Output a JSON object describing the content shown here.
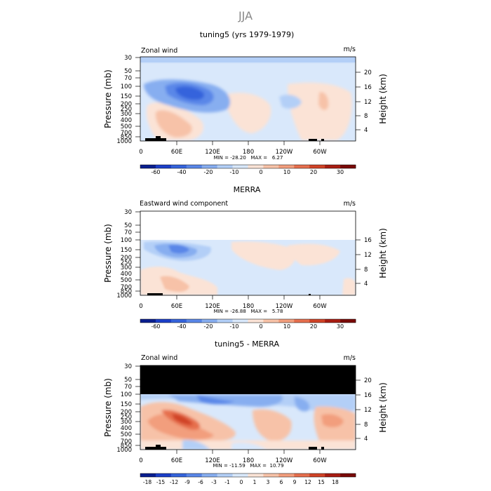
{
  "season": "JJA",
  "chart_data": [
    {
      "type": "heatmap",
      "title": "tuning5 (yrs 1979-1979)",
      "subtitle_left": "Zonal wind",
      "subtitle_right": "m/s",
      "ylabel": "Pressure (mb)",
      "ylabel_right": "Height (km)",
      "yticks": [
        "30",
        "50",
        "70",
        "100",
        "150",
        "200",
        "250",
        "300",
        "400",
        "500",
        "700",
        "850",
        "1000"
      ],
      "yticks_right": [
        "20",
        "16",
        "12",
        "8",
        "4"
      ],
      "xticks": [
        "0",
        "60E",
        "120E",
        "180",
        "120W",
        "60W"
      ],
      "stats": "MIN = -28.20   MAX =   6.27",
      "colorbar_labels": [
        "-60",
        "-40",
        "-20",
        "-10",
        "0",
        "10",
        "20",
        "30"
      ],
      "colors": [
        "#0a1f8f",
        "#1c3fc8",
        "#3564dc",
        "#5a87e8",
        "#87aef0",
        "#b3cff7",
        "#d9e8fb",
        "#fbe3d6",
        "#f7c2a8",
        "#f29e7d",
        "#e66f4e",
        "#d04327",
        "#a81d12",
        "#7a0a08"
      ]
    },
    {
      "type": "heatmap",
      "title": "MERRA",
      "subtitle_left": "Eastward wind component",
      "subtitle_right": "m/s",
      "ylabel": "Pressure (mb)",
      "ylabel_right": "Height (km)",
      "yticks": [
        "30",
        "50",
        "70",
        "100",
        "150",
        "200",
        "250",
        "300",
        "400",
        "500",
        "700",
        "850",
        "1000"
      ],
      "yticks_right": [
        "16",
        "12",
        "8",
        "4"
      ],
      "xticks": [
        "0",
        "60E",
        "120E",
        "180",
        "120W",
        "60W"
      ],
      "stats": "MIN = -26.88   MAX =   5.78",
      "colorbar_labels": [
        "-60",
        "-40",
        "-20",
        "-10",
        "0",
        "10",
        "20",
        "30"
      ]
    },
    {
      "type": "heatmap",
      "title": "tuning5 - MERRA",
      "subtitle_left": "Zonal wind",
      "subtitle_right": "m/s",
      "ylabel": "Pressure (mb)",
      "ylabel_right": "Height (km)",
      "yticks": [
        "30",
        "50",
        "70",
        "100",
        "150",
        "200",
        "250",
        "300",
        "400",
        "500",
        "700",
        "850",
        "1000"
      ],
      "yticks_right": [
        "20",
        "16",
        "12",
        "8",
        "4"
      ],
      "xticks": [
        "0",
        "60E",
        "120E",
        "180",
        "120W",
        "60W"
      ],
      "stats": "MIN = -11.59   MAX =  10.79",
      "colorbar_labels": [
        "-18",
        "-15",
        "-12",
        "-9",
        "-6",
        "-3",
        "-1",
        "0",
        "1",
        "3",
        "6",
        "9",
        "12",
        "15",
        "18"
      ]
    }
  ]
}
